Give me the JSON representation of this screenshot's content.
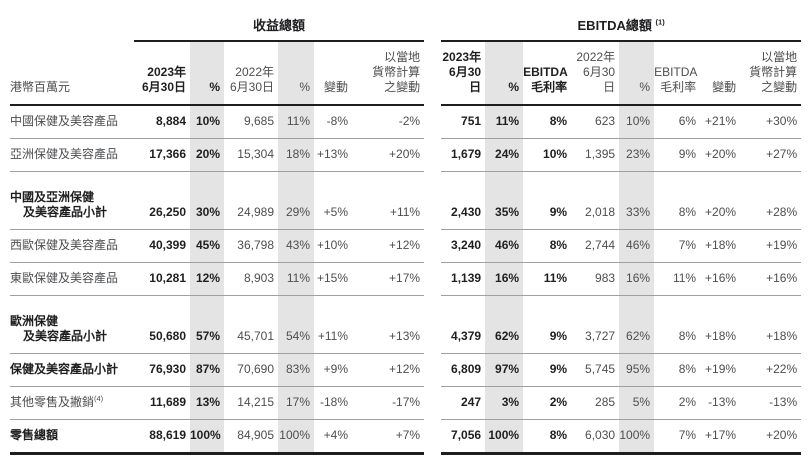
{
  "colors": {
    "shade": "#e4e4e4",
    "text-dark": "#1f1f21",
    "text-gray": "#4d4e50",
    "rule-light": "#a0a0a0",
    "rule-dark": "#1e1e1e",
    "bg": "#ffffff"
  },
  "unit_label": "港幣百萬元",
  "sections": {
    "revenue": {
      "title": "收益總額",
      "title_sup": "",
      "headers": {
        "date_2023": "2023年\n6月30日",
        "pct_2023": "%",
        "date_2022": "2022年\n6月30日",
        "pct_2022": "%",
        "change": "變動",
        "local_change": "以當地\n貨幣計算\n之變動"
      }
    },
    "ebitda": {
      "title": "EBITDA總額",
      "title_sup": "(1)",
      "headers": {
        "date_2023": "2023年\n6月30日",
        "pct_2023": "%",
        "margin_2023": "EBITDA\n毛利率",
        "date_2022": "2022年\n6月30日",
        "pct_2022": "%",
        "margin_2022": "EBITDA\n毛利率",
        "change": "變動",
        "local_change": "以當地\n貨幣計算\n之變動"
      }
    }
  },
  "rows": [
    {
      "label_lines": [
        "中國保健及美容產品"
      ],
      "label_sup": "",
      "bold": false,
      "total": false,
      "revenue": [
        "8,884",
        "10%",
        "9,685",
        "11%",
        "-8%",
        "-2%"
      ],
      "ebitda": [
        "751",
        "11%",
        "8%",
        "623",
        "10%",
        "6%",
        "+21%",
        "+30%"
      ]
    },
    {
      "label_lines": [
        "亞洲保健及美容產品"
      ],
      "label_sup": "",
      "bold": false,
      "total": false,
      "revenue": [
        "17,366",
        "20%",
        "15,304",
        "18%",
        "+13%",
        "+20%"
      ],
      "ebitda": [
        "1,679",
        "24%",
        "10%",
        "1,395",
        "23%",
        "9%",
        "+20%",
        "+27%"
      ]
    },
    {
      "label_lines": [
        "中國及亞洲保健",
        "及美容產品小計"
      ],
      "label_sup": "",
      "bold": true,
      "total": false,
      "revenue": [
        "26,250",
        "30%",
        "24,989",
        "29%",
        "+5%",
        "+11%"
      ],
      "ebitda": [
        "2,430",
        "35%",
        "9%",
        "2,018",
        "33%",
        "8%",
        "+20%",
        "+28%"
      ]
    },
    {
      "label_lines": [
        "西歐保健及美容產品"
      ],
      "label_sup": "",
      "bold": false,
      "total": false,
      "revenue": [
        "40,399",
        "45%",
        "36,798",
        "43%",
        "+10%",
        "+12%"
      ],
      "ebitda": [
        "3,240",
        "46%",
        "8%",
        "2,744",
        "46%",
        "7%",
        "+18%",
        "+19%"
      ]
    },
    {
      "label_lines": [
        "東歐保健及美容產品"
      ],
      "label_sup": "",
      "bold": false,
      "total": false,
      "revenue": [
        "10,281",
        "12%",
        "8,903",
        "11%",
        "+15%",
        "+17%"
      ],
      "ebitda": [
        "1,139",
        "16%",
        "11%",
        "983",
        "16%",
        "11%",
        "+16%",
        "+16%"
      ]
    },
    {
      "label_lines": [
        "歐洲保健",
        "及美容產品小計"
      ],
      "label_sup": "",
      "bold": true,
      "total": false,
      "revenue": [
        "50,680",
        "57%",
        "45,701",
        "54%",
        "+11%",
        "+13%"
      ],
      "ebitda": [
        "4,379",
        "62%",
        "9%",
        "3,727",
        "62%",
        "8%",
        "+18%",
        "+18%"
      ]
    },
    {
      "label_lines": [
        "保健及美容產品小計"
      ],
      "label_sup": "",
      "bold": true,
      "total": false,
      "revenue": [
        "76,930",
        "87%",
        "70,690",
        "83%",
        "+9%",
        "+12%"
      ],
      "ebitda": [
        "6,809",
        "97%",
        "9%",
        "5,745",
        "95%",
        "8%",
        "+19%",
        "+22%"
      ]
    },
    {
      "label_lines": [
        "其他零售及撇銷"
      ],
      "label_sup": "(4)",
      "bold": false,
      "total": false,
      "revenue": [
        "11,689",
        "13%",
        "14,215",
        "17%",
        "-18%",
        "-17%"
      ],
      "ebitda": [
        "247",
        "3%",
        "2%",
        "285",
        "5%",
        "2%",
        "-13%",
        "-13%"
      ]
    },
    {
      "label_lines": [
        "零售總額"
      ],
      "label_sup": "",
      "bold": true,
      "total": true,
      "revenue": [
        "88,619",
        "100%",
        "84,905",
        "100%",
        "+4%",
        "+7%"
      ],
      "ebitda": [
        "7,056",
        "100%",
        "8%",
        "6,030",
        "100%",
        "7%",
        "+17%",
        "+20%"
      ]
    }
  ]
}
